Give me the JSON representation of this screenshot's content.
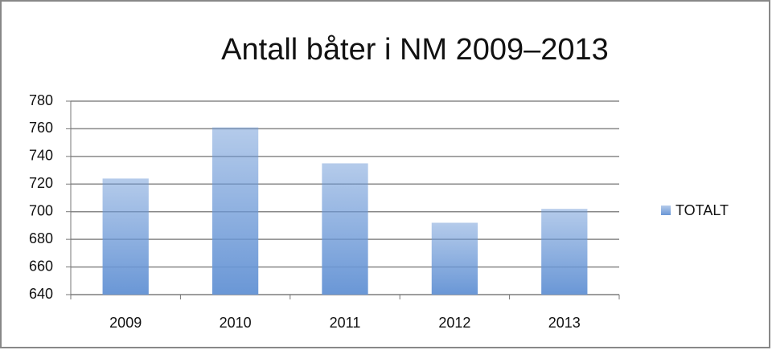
{
  "chart_data": {
    "type": "bar",
    "title": "Antall båter i NM 2009–2013",
    "categories": [
      "2009",
      "2010",
      "2011",
      "2012",
      "2013"
    ],
    "series": [
      {
        "name": "TOTALT",
        "color": "#6a97d6",
        "values": [
          724,
          761,
          735,
          692,
          702
        ]
      }
    ],
    "ylim": [
      640,
      780
    ],
    "yticks": [
      640,
      660,
      680,
      700,
      720,
      740,
      760,
      780
    ],
    "grid": true,
    "legend": "right"
  }
}
